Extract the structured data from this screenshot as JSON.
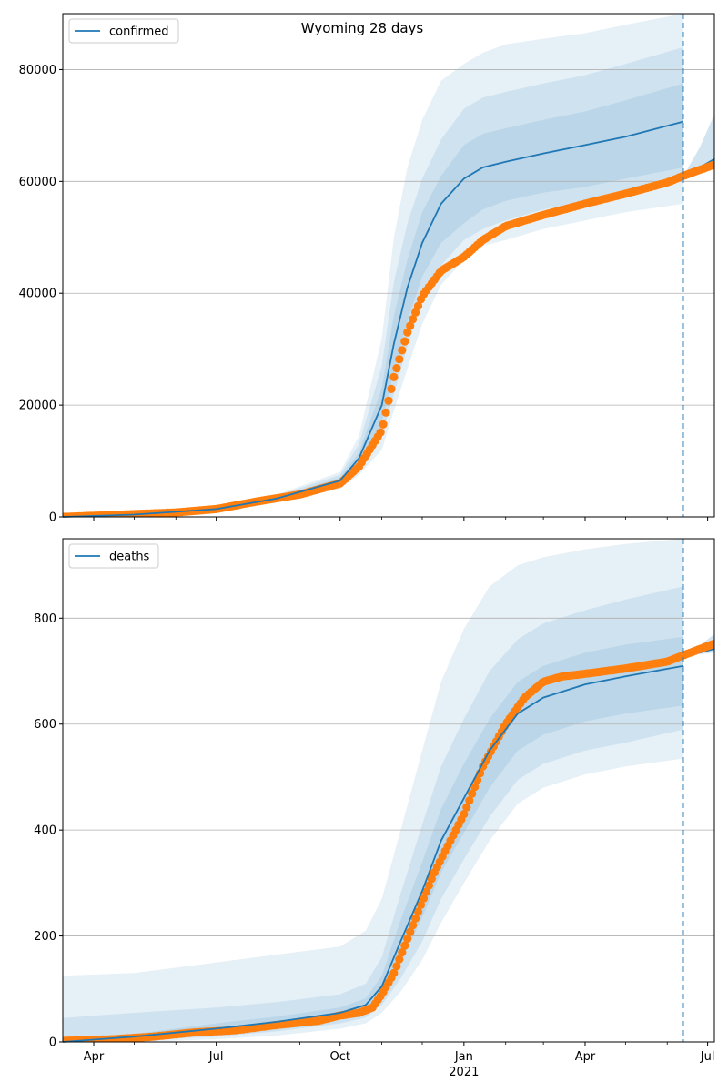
{
  "figure": {
    "title": "Wyoming 28 days"
  },
  "colors": {
    "line": "#1f77b4",
    "observed": "#ff7f0e",
    "band": "#1f77b4",
    "grid": "#b0b0b0"
  },
  "chart_data": [
    {
      "type": "line",
      "legend": "confirmed",
      "legend_placement": "top-left",
      "x_range": [
        "2020-03-09",
        "2021-07-06"
      ],
      "ylim": [
        0,
        90000
      ],
      "y_ticks": [
        0,
        20000,
        40000,
        60000,
        80000
      ],
      "y_tick_labels": [
        "0",
        "20000",
        "40000",
        "60000",
        "80000"
      ],
      "grid": "horizontal",
      "forecast_start": "2021-06-13",
      "series_model": {
        "x": [
          "2020-03-09",
          "2020-05-01",
          "2020-07-01",
          "2020-08-15",
          "2020-10-01",
          "2020-10-15",
          "2020-11-01",
          "2020-11-10",
          "2020-11-20",
          "2020-12-01",
          "2020-12-15",
          "2021-01-01",
          "2021-01-15",
          "2021-02-01",
          "2021-03-01",
          "2021-04-01",
          "2021-05-01",
          "2021-06-13"
        ],
        "median": [
          0,
          400,
          1400,
          3300,
          6500,
          10500,
          20000,
          31000,
          41000,
          49000,
          56000,
          60500,
          62500,
          63500,
          65000,
          66500,
          68000,
          70700
        ],
        "band_50_low": [
          0,
          350,
          1300,
          3100,
          6000,
          9500,
          17000,
          26000,
          35000,
          43000,
          49000,
          52500,
          55000,
          56500,
          58000,
          59000,
          60500,
          62500
        ],
        "band_50_high": [
          0,
          450,
          1500,
          3500,
          7000,
          11500,
          23000,
          36000,
          46000,
          54500,
          61000,
          66500,
          68500,
          69500,
          71000,
          72500,
          74500,
          77500
        ],
        "band_80_low": [
          0,
          300,
          1200,
          2900,
          5500,
          8500,
          14500,
          22000,
          30500,
          38500,
          45000,
          49500,
          51500,
          53000,
          55000,
          56500,
          58000,
          60500
        ],
        "band_80_high": [
          0,
          500,
          1600,
          3800,
          7500,
          13000,
          27000,
          42000,
          52500,
          60500,
          67500,
          73000,
          75000,
          76000,
          77500,
          79000,
          81000,
          84000
        ],
        "band_95_low": [
          0,
          250,
          1100,
          2700,
          5000,
          7500,
          12000,
          19000,
          26500,
          34500,
          41500,
          46000,
          48500,
          49500,
          51500,
          53000,
          54500,
          56000
        ],
        "band_95_high": [
          0,
          550,
          1700,
          4000,
          8000,
          14500,
          32000,
          50000,
          62500,
          71000,
          78000,
          81000,
          83000,
          84500,
          85500,
          86500,
          88000,
          90000
        ]
      },
      "series_model_after": {
        "x": [
          "2021-06-13",
          "2021-06-25",
          "2021-07-06"
        ],
        "median": [
          61000,
          62500,
          64000
        ],
        "band_low": [
          61000,
          61500,
          62500
        ],
        "band_high": [
          61000,
          66000,
          72000
        ]
      },
      "series_observed": {
        "x": [
          "2020-03-09",
          "2020-04-01",
          "2020-05-01",
          "2020-06-01",
          "2020-07-01",
          "2020-08-01",
          "2020-09-01",
          "2020-10-01",
          "2020-10-15",
          "2020-11-01",
          "2020-11-10",
          "2020-11-20",
          "2020-12-01",
          "2020-12-15",
          "2021-01-01",
          "2021-01-15",
          "2021-02-01",
          "2021-03-01",
          "2021-04-01",
          "2021-05-01",
          "2021-06-01",
          "2021-06-13",
          "2021-07-06"
        ],
        "values": [
          0,
          200,
          500,
          800,
          1400,
          2800,
          4000,
          6000,
          9000,
          15500,
          25000,
          33000,
          39500,
          44000,
          46500,
          49500,
          52000,
          54000,
          56000,
          57800,
          59800,
          61000,
          63000
        ]
      }
    },
    {
      "type": "line",
      "legend": "deaths",
      "legend_placement": "top-left",
      "x_range": [
        "2020-03-09",
        "2021-07-06"
      ],
      "ylim": [
        0,
        950
      ],
      "y_ticks": [
        0,
        200,
        400,
        600,
        800
      ],
      "y_tick_labels": [
        "0",
        "200",
        "400",
        "600",
        "800"
      ],
      "grid": "horizontal",
      "forecast_start": "2021-06-13",
      "x_ticks": [
        "2020-04-01",
        "2020-07-01",
        "2020-10-01",
        "2021-01-01",
        "2021-04-01",
        "2021-07-01"
      ],
      "x_tick_labels": [
        "Apr",
        "Jul",
        "Oct",
        "Jan",
        "Apr",
        "Jul"
      ],
      "x_minor_ticks": [
        "2020-05-01",
        "2020-06-01",
        "2020-08-01",
        "2020-09-01",
        "2020-11-01",
        "2020-12-01",
        "2021-02-01",
        "2021-03-01",
        "2021-05-01",
        "2021-06-01"
      ],
      "x_year_label": {
        "date": "2021-01-01",
        "text": "2021"
      },
      "series_model": {
        "x": [
          "2020-03-09",
          "2020-05-01",
          "2020-07-01",
          "2020-08-15",
          "2020-10-01",
          "2020-10-20",
          "2020-11-01",
          "2020-11-15",
          "2020-12-01",
          "2020-12-15",
          "2021-01-01",
          "2021-01-20",
          "2021-02-10",
          "2021-03-01",
          "2021-04-01",
          "2021-05-01",
          "2021-06-13"
        ],
        "median": [
          0,
          10,
          25,
          38,
          55,
          70,
          105,
          190,
          285,
          380,
          460,
          550,
          620,
          650,
          675,
          690,
          710
        ],
        "band_50_low": [
          0,
          5,
          15,
          28,
          45,
          58,
          85,
          150,
          235,
          320,
          395,
          480,
          550,
          580,
          605,
          620,
          635
        ],
        "band_50_high": [
          5,
          15,
          35,
          48,
          65,
          82,
          125,
          230,
          340,
          440,
          525,
          610,
          680,
          710,
          735,
          750,
          765
        ],
        "band_80_low": [
          0,
          3,
          10,
          20,
          35,
          46,
          70,
          120,
          190,
          270,
          345,
          425,
          495,
          525,
          550,
          565,
          590
        ],
        "band_80_high": [
          45,
          55,
          65,
          75,
          90,
          110,
          160,
          280,
          410,
          520,
          610,
          700,
          760,
          790,
          815,
          835,
          860
        ],
        "band_95_low": [
          0,
          0,
          5,
          12,
          25,
          35,
          55,
          95,
          155,
          225,
          300,
          380,
          450,
          480,
          505,
          520,
          535
        ],
        "band_95_high": [
          125,
          130,
          150,
          165,
          180,
          210,
          270,
          400,
          550,
          680,
          780,
          860,
          900,
          915,
          930,
          940,
          950
        ]
      },
      "series_model_after": {
        "x": [
          "2021-06-13",
          "2021-06-25",
          "2021-07-06"
        ],
        "median": [
          730,
          735,
          742
        ],
        "band_low": [
          730,
          732,
          735
        ],
        "band_high": [
          730,
          748,
          770
        ]
      },
      "series_observed": {
        "x": [
          "2020-03-09",
          "2020-04-15",
          "2020-05-15",
          "2020-06-15",
          "2020-07-15",
          "2020-08-15",
          "2020-09-15",
          "2020-10-01",
          "2020-10-15",
          "2020-10-25",
          "2020-11-01",
          "2020-11-10",
          "2020-11-20",
          "2020-12-01",
          "2020-12-10",
          "2020-12-20",
          "2021-01-01",
          "2021-01-15",
          "2021-02-01",
          "2021-02-15",
          "2021-03-01",
          "2021-03-15",
          "2021-04-01",
          "2021-05-01",
          "2021-06-01",
          "2021-06-13",
          "2021-07-06"
        ],
        "values": [
          2,
          5,
          10,
          18,
          22,
          32,
          40,
          50,
          55,
          65,
          90,
          130,
          195,
          265,
          320,
          370,
          430,
          520,
          600,
          650,
          680,
          690,
          695,
          705,
          718,
          730,
          752
        ]
      }
    }
  ]
}
